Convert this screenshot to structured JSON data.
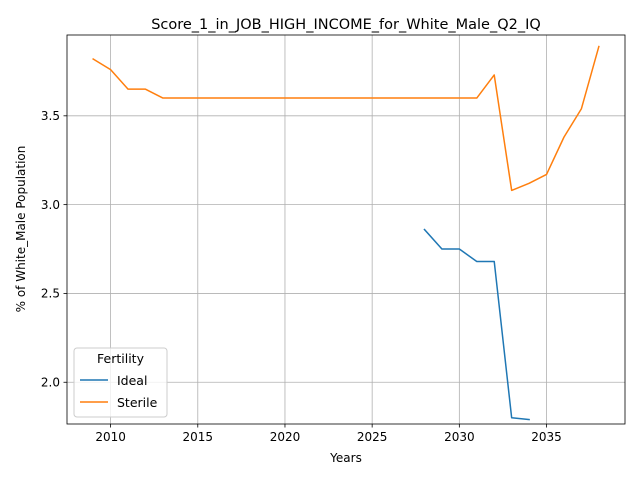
{
  "chart_data": {
    "type": "line",
    "title": "Score_1_in_JOB_HIGH_INCOME_for_White_Male_Q2_IQ",
    "xlabel": "Years",
    "ylabel": "% of White_Male Population",
    "xlim": [
      2007.5,
      2039.5
    ],
    "ylim": [
      1.765,
      3.955
    ],
    "xticks": [
      2010,
      2015,
      2020,
      2025,
      2030,
      2035
    ],
    "yticks": [
      2.0,
      2.5,
      3.0,
      3.5
    ],
    "grid": true,
    "legend": {
      "title": "Fertility",
      "position": "lower left"
    },
    "series": [
      {
        "name": "Ideal",
        "color": "#1f77b4",
        "x": [
          2028,
          2029,
          2030,
          2031,
          2032,
          2033,
          2034
        ],
        "y": [
          2.86,
          2.75,
          2.75,
          2.68,
          2.68,
          1.8,
          1.79
        ]
      },
      {
        "name": "Sterile",
        "color": "#ff7f0e",
        "x": [
          2009,
          2010,
          2011,
          2012,
          2013,
          2014,
          2015,
          2016,
          2017,
          2018,
          2019,
          2020,
          2021,
          2022,
          2023,
          2024,
          2025,
          2026,
          2027,
          2028,
          2029,
          2030,
          2031,
          2032,
          2033,
          2034,
          2035,
          2036,
          2037,
          2038
        ],
        "y": [
          3.82,
          3.76,
          3.65,
          3.65,
          3.6,
          3.6,
          3.6,
          3.6,
          3.6,
          3.6,
          3.6,
          3.6,
          3.6,
          3.6,
          3.6,
          3.6,
          3.6,
          3.6,
          3.6,
          3.6,
          3.6,
          3.6,
          3.6,
          3.73,
          3.08,
          3.12,
          3.17,
          3.38,
          3.54,
          3.89
        ]
      }
    ]
  }
}
